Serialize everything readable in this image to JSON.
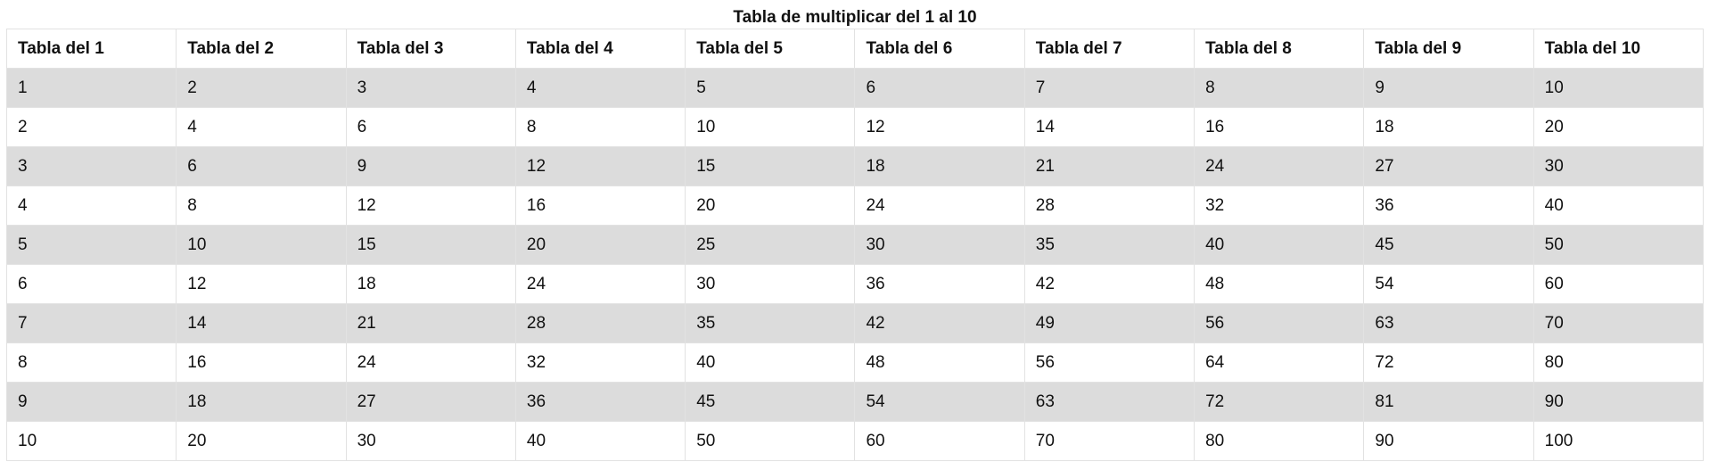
{
  "title": "Tabla de multiplicar del 1 al 10",
  "headers": [
    "Tabla del 1",
    "Tabla del 2",
    "Tabla del 3",
    "Tabla del 4",
    "Tabla del 5",
    "Tabla del 6",
    "Tabla del 7",
    "Tabla del 8",
    "Tabla del 9",
    "Tabla del 10"
  ],
  "rows": [
    [
      "1",
      "2",
      "3",
      "4",
      "5",
      "6",
      "7",
      "8",
      "9",
      "10"
    ],
    [
      "2",
      "4",
      "6",
      "8",
      "10",
      "12",
      "14",
      "16",
      "18",
      "20"
    ],
    [
      "3",
      "6",
      "9",
      "12",
      "15",
      "18",
      "21",
      "24",
      "27",
      "30"
    ],
    [
      "4",
      "8",
      "12",
      "16",
      "20",
      "24",
      "28",
      "32",
      "36",
      "40"
    ],
    [
      "5",
      "10",
      "15",
      "20",
      "25",
      "30",
      "35",
      "40",
      "45",
      "50"
    ],
    [
      "6",
      "12",
      "18",
      "24",
      "30",
      "36",
      "42",
      "48",
      "54",
      "60"
    ],
    [
      "7",
      "14",
      "21",
      "28",
      "35",
      "42",
      "49",
      "56",
      "63",
      "70"
    ],
    [
      "8",
      "16",
      "24",
      "32",
      "40",
      "48",
      "56",
      "64",
      "72",
      "80"
    ],
    [
      "9",
      "18",
      "27",
      "36",
      "45",
      "54",
      "63",
      "72",
      "81",
      "90"
    ],
    [
      "10",
      "20",
      "30",
      "40",
      "50",
      "60",
      "70",
      "80",
      "90",
      "100"
    ]
  ],
  "colors": {
    "shaded_row": "#dcdcdc",
    "border": "#e2e2e2",
    "text": "#111111"
  }
}
